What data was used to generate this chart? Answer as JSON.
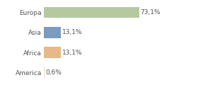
{
  "categories": [
    "Europa",
    "Asia",
    "Africa",
    "America"
  ],
  "values": [
    73.1,
    13.1,
    13.1,
    0.6
  ],
  "labels": [
    "73,1%",
    "13,1%",
    "13,1%",
    "0,6%"
  ],
  "bar_colors": [
    "#b5c9a1",
    "#7b9bbf",
    "#e8b88a",
    "#f0e0c0"
  ],
  "background_color": "#ffffff",
  "xlim": [
    0,
    100
  ],
  "bar_height": 0.55,
  "label_fontsize": 6.5,
  "tick_fontsize": 6.5,
  "label_color": "#555555",
  "tick_color": "#555555"
}
